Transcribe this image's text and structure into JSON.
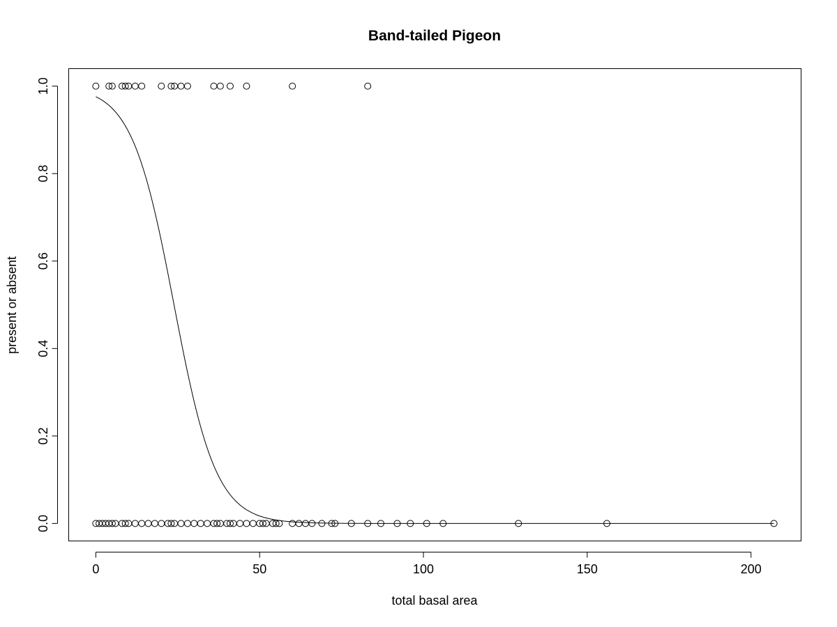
{
  "chart_data": {
    "type": "scatter",
    "title": "Band-tailed Pigeon",
    "xlabel": "total basal area",
    "ylabel": "present or absent",
    "xlim": [
      -8.28,
      215.28
    ],
    "ylim": [
      -0.04,
      1.04
    ],
    "x_ticks": [
      0,
      50,
      100,
      150,
      200
    ],
    "x_tick_labels": [
      "0",
      "50",
      "100",
      "150",
      "200"
    ],
    "y_ticks": [
      0.0,
      0.2,
      0.4,
      0.6,
      0.8,
      1.0
    ],
    "y_tick_labels": [
      "0.0",
      "0.2",
      "0.4",
      "0.6",
      "0.8",
      "1.0"
    ],
    "grid": false,
    "series": [
      {
        "marker": "open-circle",
        "points_present": [
          0,
          4,
          5,
          8,
          9,
          10,
          12,
          14,
          20,
          23,
          24,
          26,
          28,
          36,
          38,
          41,
          46,
          60,
          83
        ],
        "points_absent": [
          0,
          1,
          2,
          3,
          4,
          5,
          6,
          8,
          9,
          10,
          12,
          14,
          16,
          18,
          20,
          22,
          23,
          24,
          26,
          28,
          30,
          32,
          34,
          36,
          37,
          38,
          40,
          41,
          42,
          44,
          46,
          48,
          50,
          51,
          52,
          54,
          55,
          56,
          60,
          62,
          64,
          66,
          69,
          72,
          73,
          78,
          83,
          87,
          92,
          96,
          101,
          106,
          129,
          156,
          207
        ]
      }
    ],
    "fit_curve": {
      "model": "logistic",
      "intercept": 3.7,
      "slope": -0.155,
      "x_range": [
        0,
        207
      ]
    }
  }
}
